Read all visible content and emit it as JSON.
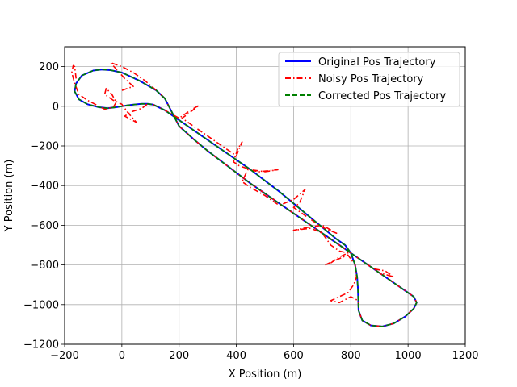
{
  "chart_data": {
    "type": "line",
    "title": "",
    "xlabel": "X Position (m)",
    "ylabel": "Y Position (m)",
    "xlim": [
      -200,
      1200
    ],
    "ylim": [
      -1200,
      300
    ],
    "xticks": [
      -200,
      0,
      200,
      400,
      600,
      800,
      1000,
      1200
    ],
    "yticks": [
      200,
      0,
      -200,
      -400,
      -600,
      -800,
      -1000,
      -1200
    ],
    "xtick_labels": [
      "−200",
      "0",
      "200",
      "400",
      "600",
      "800",
      "1000",
      "1200"
    ],
    "ytick_labels": [
      "200",
      "0",
      "−200",
      "−400",
      "−600",
      "−800",
      "−1000",
      "−1200"
    ],
    "grid": true,
    "legend_position": "top-right",
    "series": [
      {
        "name": "Original Pos Trajectory",
        "color": "#0000ff",
        "style": "solid",
        "x": [
          150,
          120,
          60,
          0,
          -40,
          -70,
          -100,
          -140,
          -160,
          -165,
          -150,
          -120,
          -80,
          -50,
          -20,
          0,
          20,
          40,
          70,
          90,
          110,
          150,
          200,
          250,
          300,
          350,
          400,
          450,
          500,
          550,
          600,
          650,
          700,
          750,
          780,
          800,
          815,
          822,
          825,
          826,
          827,
          840,
          870,
          910,
          950,
          990,
          1020,
          1030,
          1020,
          1000,
          950,
          900,
          850,
          800,
          750,
          700,
          650,
          600,
          550,
          500,
          450,
          400,
          350,
          300,
          250,
          200,
          150
        ],
        "y": [
          40,
          80,
          130,
          170,
          182,
          185,
          180,
          155,
          115,
          75,
          35,
          10,
          -5,
          -10,
          -5,
          0,
          5,
          8,
          12,
          12,
          8,
          -20,
          -70,
          -120,
          -170,
          -220,
          -270,
          -320,
          -375,
          -430,
          -490,
          -550,
          -610,
          -670,
          -700,
          -740,
          -800,
          -860,
          -920,
          -980,
          -1030,
          -1080,
          -1105,
          -1110,
          -1095,
          -1060,
          -1020,
          -990,
          -960,
          -940,
          -890,
          -840,
          -790,
          -740,
          -690,
          -640,
          -590,
          -540,
          -490,
          -440,
          -390,
          -335,
          -280,
          -225,
          -165,
          -100,
          40
        ]
      },
      {
        "name": "Noisy Pos Trajectory",
        "color": "#ff0000",
        "style": "dashdot",
        "x": [
          -160,
          -165,
          -170,
          -175,
          -165,
          -150,
          -120,
          -80,
          -60,
          -30,
          -20,
          -35,
          -55,
          -60,
          -30,
          0,
          20,
          50,
          10,
          30,
          50,
          70,
          90,
          110,
          150,
          200,
          210,
          240,
          270,
          230,
          210,
          250,
          300,
          350,
          400,
          420,
          405,
          390,
          410,
          450,
          500,
          545,
          480,
          440,
          420,
          450,
          500,
          550,
          600,
          640,
          620,
          600,
          650,
          700,
          750,
          700,
          650,
          620,
          600,
          660,
          700,
          730,
          760,
          790,
          760,
          730,
          710,
          740,
          790,
          800,
          815,
          820,
          810,
          790,
          760,
          730,
          760,
          800,
          826,
          827,
          840,
          870,
          910,
          950,
          990,
          1020,
          1030,
          1020,
          1000,
          950,
          880,
          920,
          950,
          900,
          850,
          800,
          750,
          700,
          650,
          600,
          550,
          500,
          450,
          400,
          350,
          300,
          250,
          200,
          150,
          120,
          80,
          40,
          0,
          -40,
          10,
          40,
          0
        ],
        "y": [
          140,
          200,
          205,
          170,
          115,
          60,
          30,
          0,
          -15,
          -5,
          20,
          60,
          90,
          60,
          30,
          10,
          -30,
          -80,
          -50,
          -30,
          -20,
          -10,
          12,
          8,
          -20,
          -60,
          -50,
          -20,
          5,
          -40,
          -60,
          -100,
          -150,
          -200,
          -250,
          -180,
          -215,
          -280,
          -300,
          -320,
          -330,
          -320,
          -330,
          -320,
          -380,
          -410,
          -450,
          -500,
          -470,
          -420,
          -490,
          -510,
          -560,
          -610,
          -640,
          -600,
          -610,
          -620,
          -625,
          -615,
          -640,
          -700,
          -730,
          -740,
          -760,
          -790,
          -800,
          -780,
          -750,
          -770,
          -800,
          -860,
          -900,
          -940,
          -960,
          -980,
          -990,
          -960,
          -980,
          -1030,
          -1080,
          -1105,
          -1110,
          -1095,
          -1060,
          -1020,
          -990,
          -960,
          -940,
          -890,
          -820,
          -830,
          -860,
          -840,
          -790,
          -740,
          -690,
          -640,
          -590,
          -540,
          -490,
          -440,
          -390,
          -335,
          -280,
          -225,
          -165,
          -100,
          40,
          80,
          130,
          170,
          200,
          220,
          140,
          100,
          80
        ]
      },
      {
        "name": "Corrected Pos Trajectory",
        "color": "#008000",
        "style": "dashed",
        "x": [
          150,
          120,
          60,
          0,
          -40,
          -70,
          -100,
          -140,
          -160,
          -165,
          -150,
          -120,
          -80,
          -50,
          -20,
          0,
          20,
          40,
          70,
          90,
          110,
          150,
          200,
          250,
          300,
          350,
          400,
          450,
          500,
          550,
          600,
          650,
          700,
          750,
          780,
          800,
          815,
          822,
          825,
          826,
          827,
          840,
          870,
          910,
          950,
          990,
          1020,
          1030,
          1020,
          1000,
          950,
          900,
          850,
          800,
          750,
          700,
          650,
          600,
          550,
          500,
          450,
          400,
          350,
          300,
          250,
          200,
          150
        ],
        "y": [
          40,
          80,
          130,
          170,
          182,
          185,
          180,
          155,
          115,
          75,
          35,
          10,
          -5,
          -10,
          -5,
          0,
          5,
          8,
          12,
          12,
          8,
          -20,
          -70,
          -120,
          -170,
          -220,
          -270,
          -320,
          -375,
          -430,
          -490,
          -550,
          -610,
          -670,
          -700,
          -740,
          -800,
          -860,
          -920,
          -980,
          -1030,
          -1080,
          -1105,
          -1110,
          -1095,
          -1060,
          -1020,
          -990,
          -960,
          -940,
          -890,
          -840,
          -790,
          -740,
          -690,
          -640,
          -590,
          -540,
          -490,
          -440,
          -390,
          -335,
          -280,
          -225,
          -165,
          -100,
          40
        ]
      }
    ]
  }
}
